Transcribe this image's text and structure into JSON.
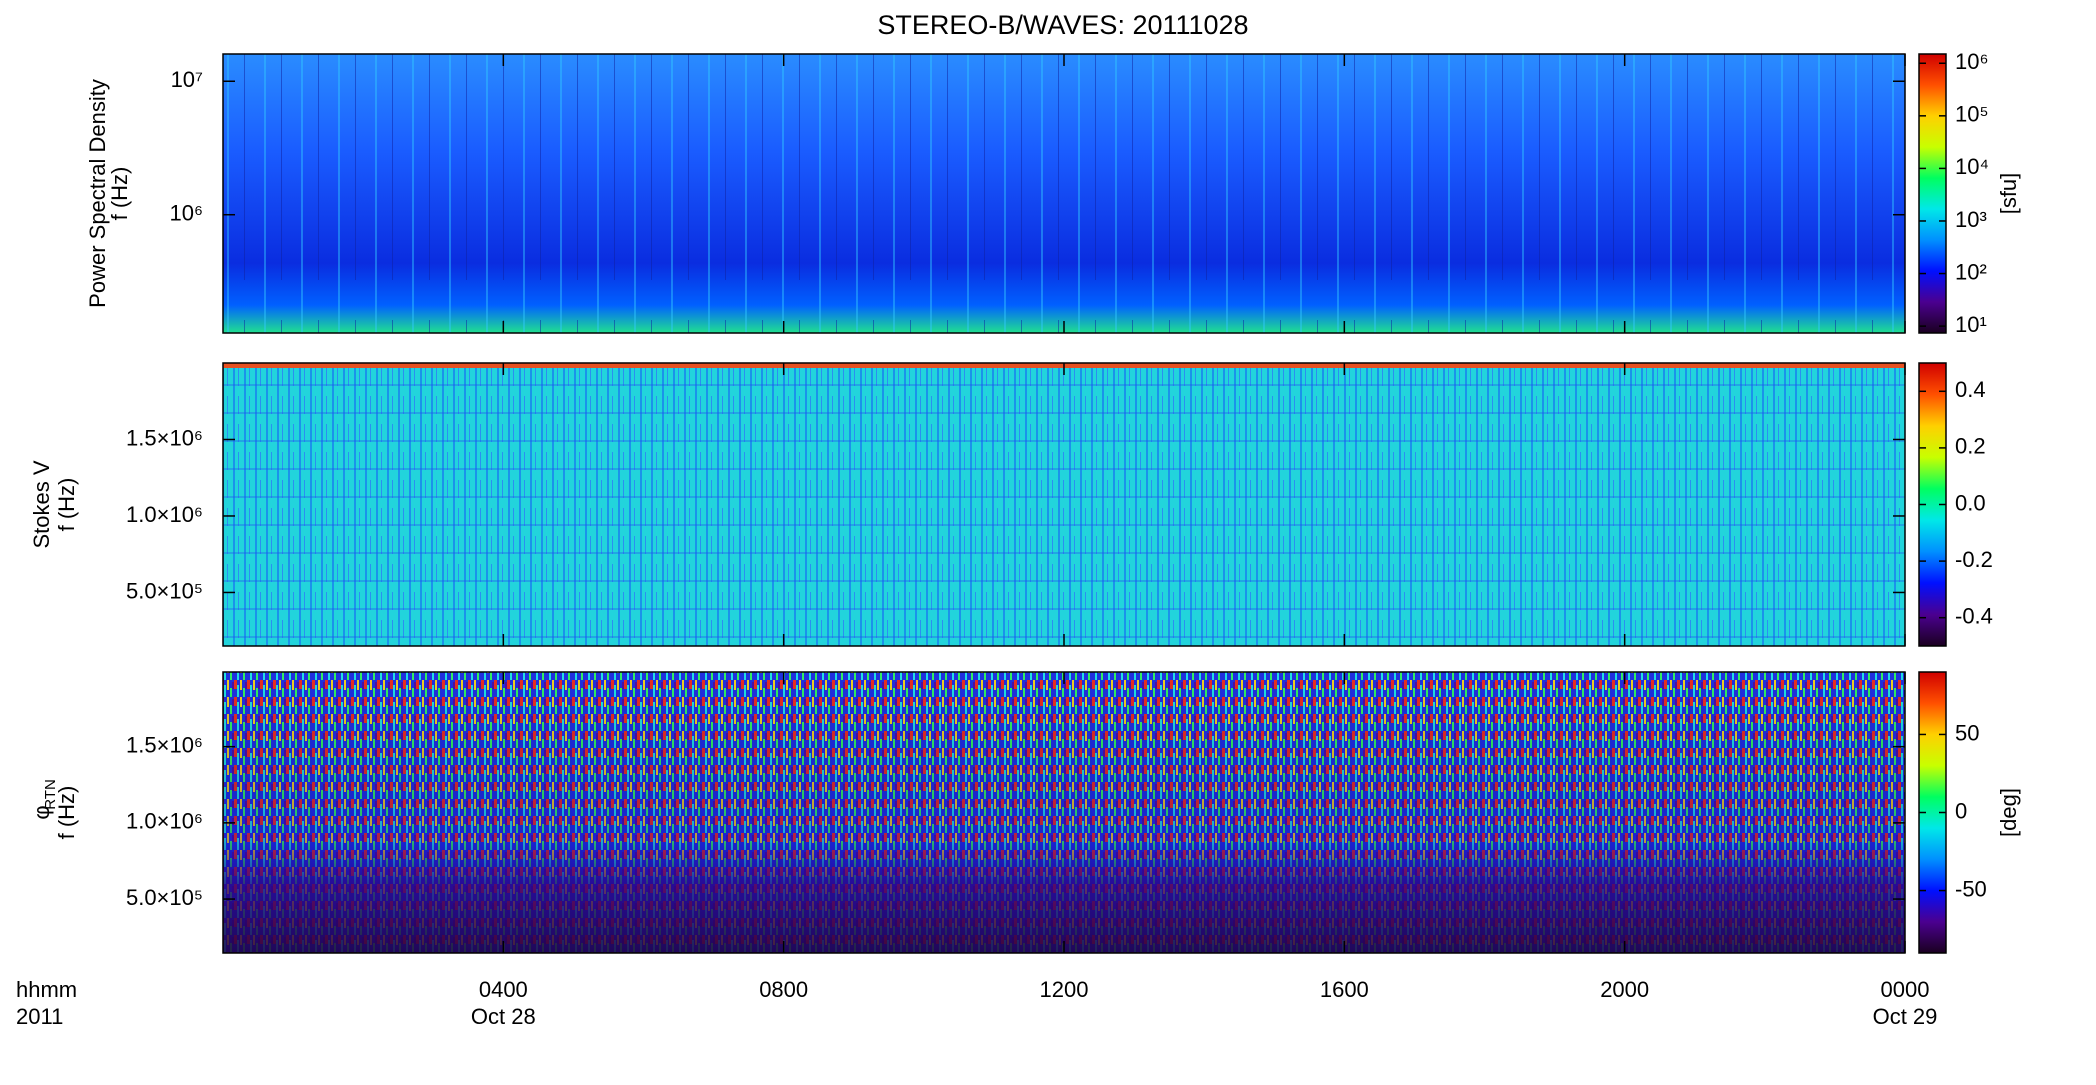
{
  "title": "STEREO-B/WAVES: 20111028",
  "x_axis": {
    "xlim": [
      0,
      24
    ],
    "xticks": [
      {
        "value": 4,
        "label": "0400"
      },
      {
        "value": 8,
        "label": "0800"
      },
      {
        "value": 12,
        "label": "1200"
      },
      {
        "value": 16,
        "label": "1600"
      },
      {
        "value": 20,
        "label": "2000"
      },
      {
        "value": 24,
        "label": "0000"
      }
    ],
    "date_labels": [
      {
        "value": 4,
        "label": "Oct 28"
      },
      {
        "value": 24,
        "label": "Oct 29"
      }
    ],
    "units_label": [
      "hhmm",
      "2011"
    ]
  },
  "colormap": [
    "#1a0020",
    "#4b0090",
    "#0010ff",
    "#0090ff",
    "#00e8e8",
    "#00ff60",
    "#c8ff00",
    "#ffd000",
    "#ff5000",
    "#d00000"
  ],
  "chart_data": [
    {
      "type": "spectrogram",
      "ylabel": [
        "Power Spectral Density",
        "f (Hz)"
      ],
      "ylog": true,
      "ylim": [
        130000,
        16000000
      ],
      "yticks": [
        {
          "value": 1000000,
          "label": "10⁶"
        },
        {
          "value": 10000000,
          "label": "10⁷"
        }
      ],
      "colorbar": {
        "log": true,
        "zlim": [
          7.4,
          1500000
        ],
        "label": "[sfu]",
        "zticks": [
          {
            "value": 10,
            "label": "10¹"
          },
          {
            "value": 100,
            "label": "10²"
          },
          {
            "value": 1000,
            "label": "10³"
          },
          {
            "value": 10000,
            "label": "10⁴"
          },
          {
            "value": 100000,
            "label": "10⁵"
          },
          {
            "value": 1000000,
            "label": "10⁶"
          }
        ]
      }
    },
    {
      "type": "spectrogram",
      "ylabel": [
        "Stokes V",
        "f (Hz)"
      ],
      "ylog": false,
      "ylim": [
        150000,
        2000000
      ],
      "yticks": [
        {
          "value": 500000,
          "label": "5.0×10⁵"
        },
        {
          "value": 1000000,
          "label": "1.0×10⁶"
        },
        {
          "value": 1500000,
          "label": "1.5×10⁶"
        }
      ],
      "colorbar": {
        "log": false,
        "zlim": [
          -0.5,
          0.5
        ],
        "label": "",
        "zticks": [
          -0.4,
          -0.2,
          {
            "value": 0,
            "label": "0.0"
          },
          0.2,
          0.4
        ]
      }
    },
    {
      "type": "spectrogram",
      "ylabel": [
        "φ",
        "f (Hz)"
      ],
      "ylabel_sub": "RTN",
      "ylog": false,
      "ylim": [
        146000,
        1990000
      ],
      "yticks": [
        {
          "value": 500000,
          "label": "5.0×10⁵"
        },
        {
          "value": 1000000,
          "label": "1.0×10⁶"
        },
        {
          "value": 1500000,
          "label": "1.5×10⁶"
        }
      ],
      "colorbar": {
        "log": false,
        "zlim": [
          -90,
          90
        ],
        "label": "[deg]",
        "zticks": [
          -50,
          0,
          50
        ]
      }
    }
  ]
}
